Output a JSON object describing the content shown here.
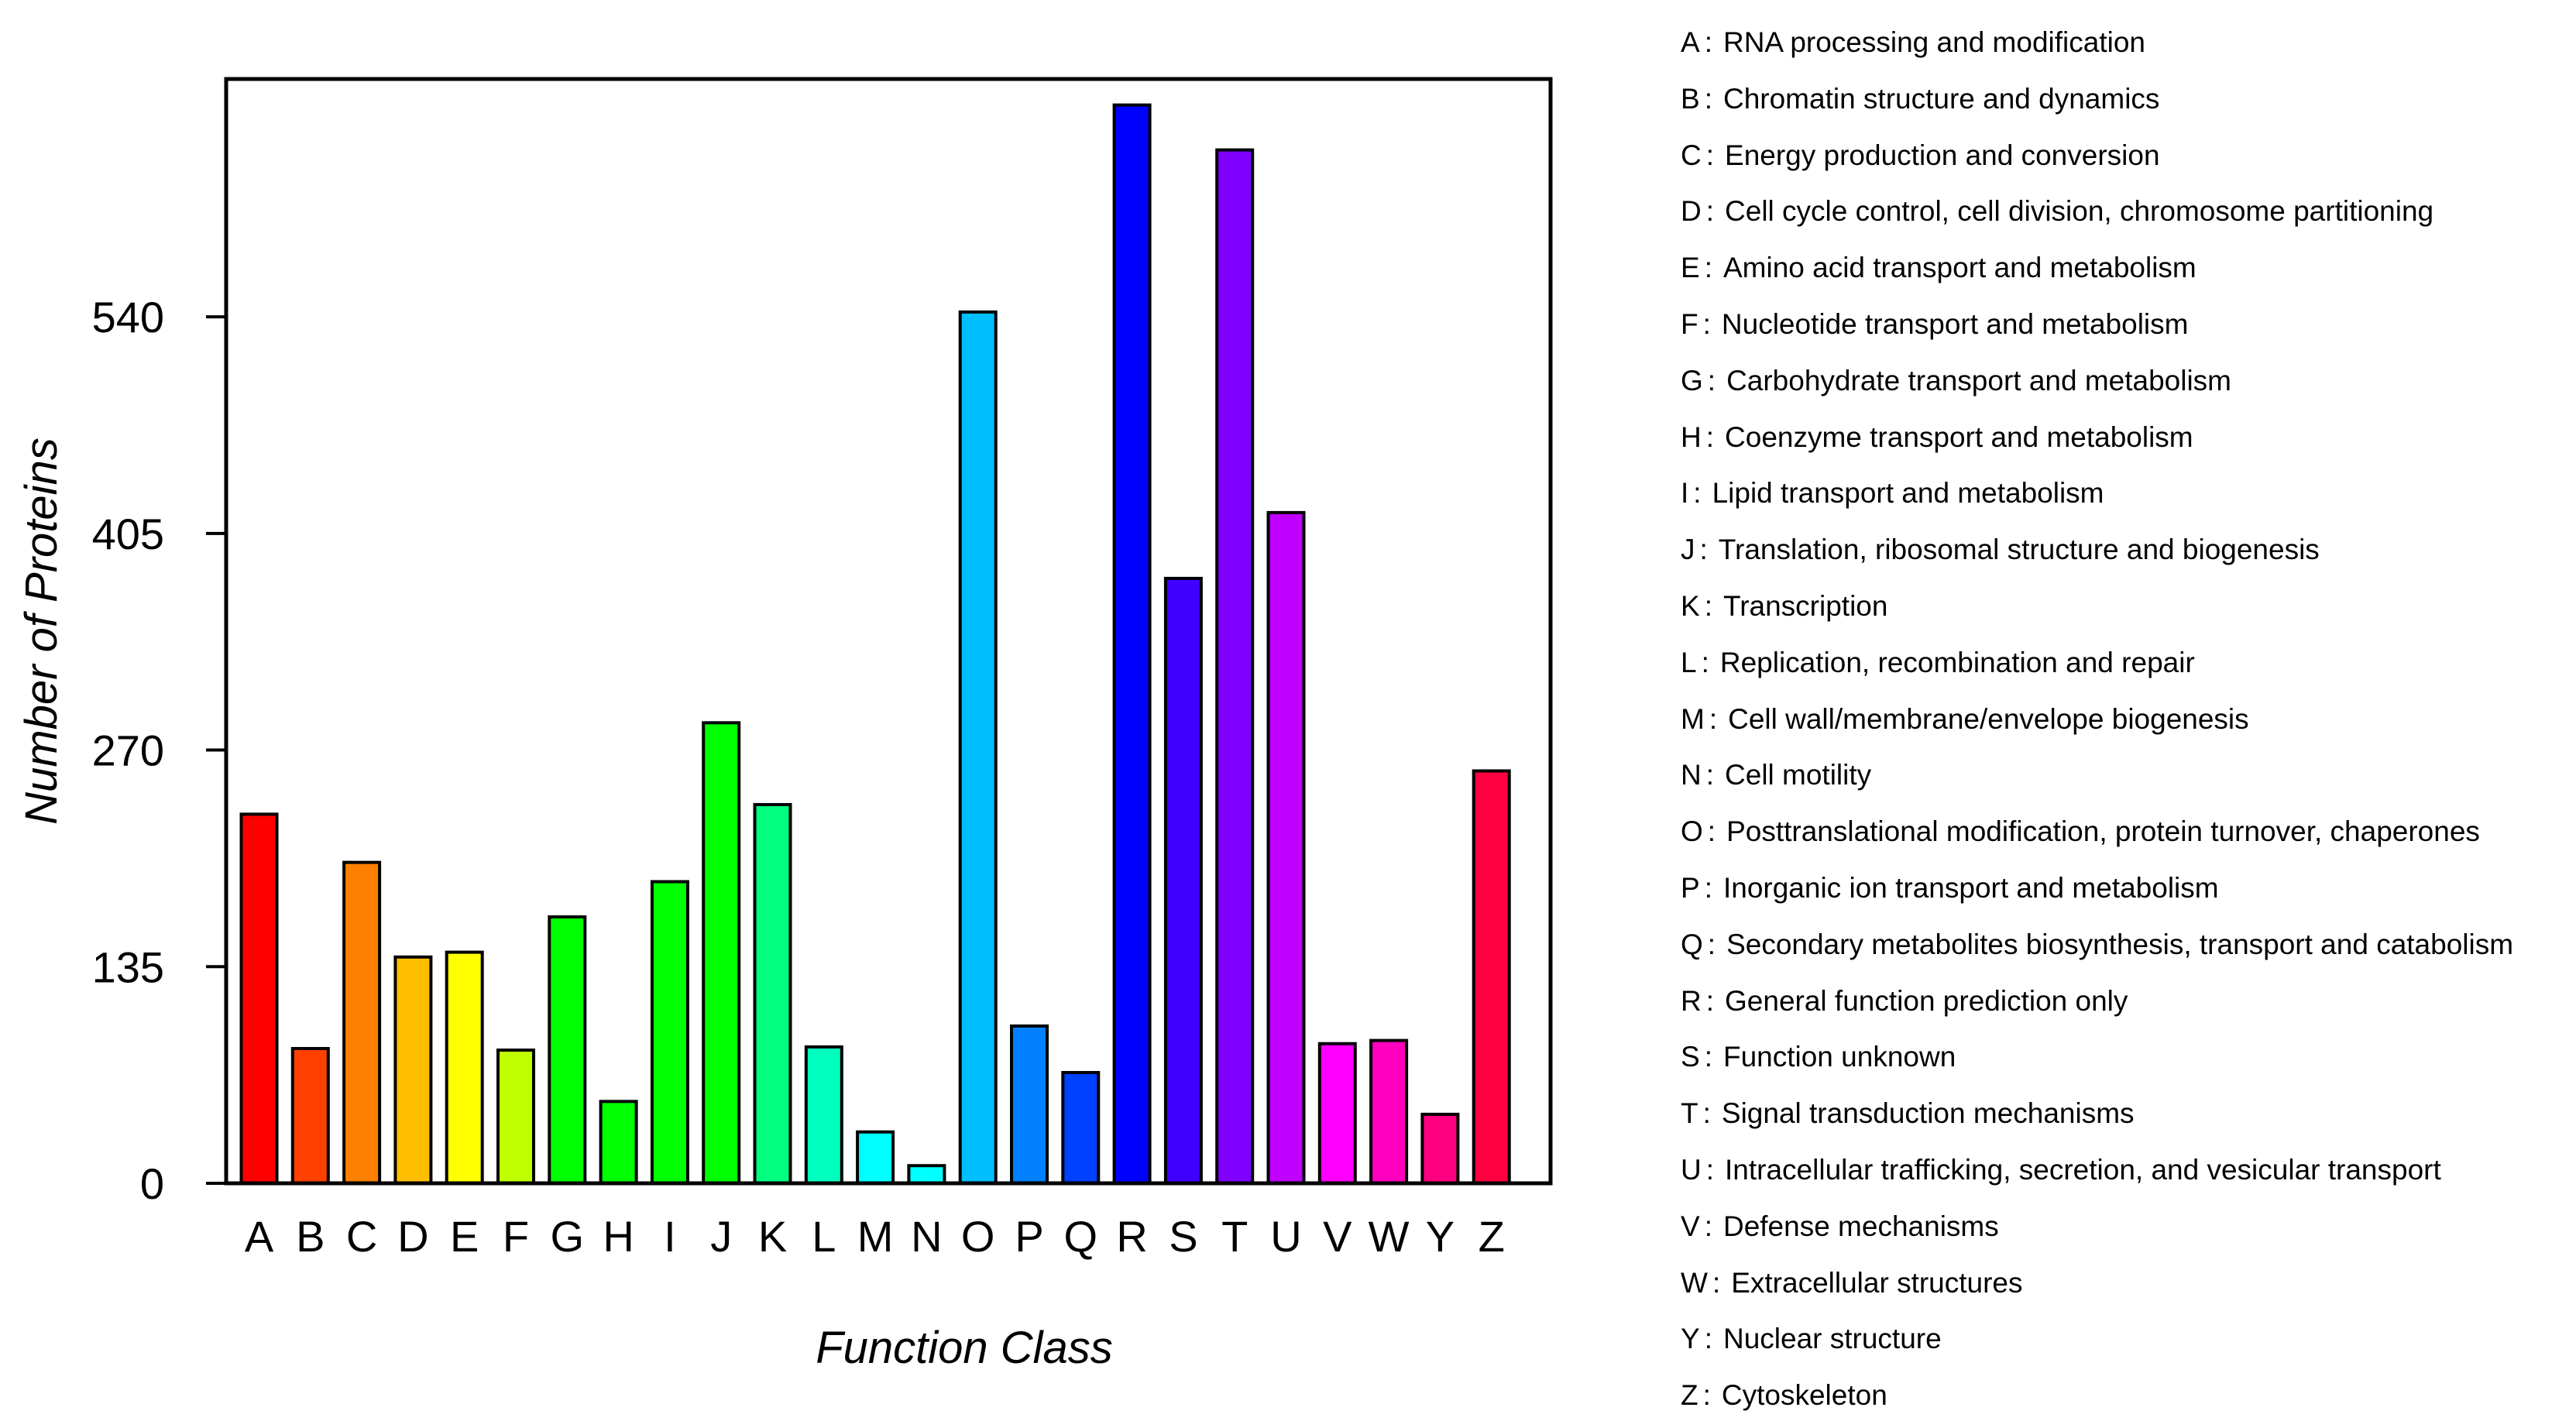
{
  "chart_data": {
    "type": "bar",
    "title": "",
    "xlabel": "Function Class",
    "ylabel": "Number of Proteins",
    "ylim": [
      0,
      675
    ],
    "yticks": [
      0,
      135,
      270,
      405,
      540
    ],
    "categories": [
      "A",
      "B",
      "C",
      "D",
      "E",
      "F",
      "G",
      "H",
      "I",
      "J",
      "K",
      "L",
      "M",
      "N",
      "O",
      "P",
      "Q",
      "R",
      "S",
      "T",
      "U",
      "V",
      "W",
      "Y",
      "Z"
    ],
    "values": [
      230,
      84,
      200,
      141,
      144,
      83,
      166,
      51,
      188,
      287,
      236,
      85,
      32,
      11,
      543,
      98,
      69,
      672,
      377,
      644,
      418,
      87,
      89,
      43,
      257
    ],
    "colors": [
      "#ff0000",
      "#ff4000",
      "#ff8000",
      "#ffbf00",
      "#ffff00",
      "#bfff00",
      "#00ff00",
      "#00ff00",
      "#00ff00",
      "#00ff00",
      "#00ff80",
      "#00ffbf",
      "#00ffff",
      "#00ffff",
      "#00bfff",
      "#0080ff",
      "#0040ff",
      "#0000ff",
      "#4000ff",
      "#8000ff",
      "#bf00ff",
      "#ff00ff",
      "#ff00bf",
      "#ff0080",
      "#ff0040"
    ],
    "legend": [
      {
        "key": "A",
        "label": "RNA processing and modification"
      },
      {
        "key": "B",
        "label": "Chromatin structure and dynamics"
      },
      {
        "key": "C",
        "label": "Energy production and conversion"
      },
      {
        "key": "D",
        "label": "Cell cycle control, cell division, chromosome partitioning"
      },
      {
        "key": "E",
        "label": "Amino acid transport and metabolism"
      },
      {
        "key": "F",
        "label": "Nucleotide transport and metabolism"
      },
      {
        "key": "G",
        "label": "Carbohydrate transport and metabolism"
      },
      {
        "key": "H",
        "label": "Coenzyme transport and metabolism"
      },
      {
        "key": "I",
        "label": "Lipid transport and metabolism"
      },
      {
        "key": "J",
        "label": "Translation, ribosomal structure and biogenesis"
      },
      {
        "key": "K",
        "label": "Transcription"
      },
      {
        "key": "L",
        "label": "Replication, recombination and repair"
      },
      {
        "key": "M",
        "label": "Cell wall/membrane/envelope biogenesis"
      },
      {
        "key": "N",
        "label": "Cell motility"
      },
      {
        "key": "O",
        "label": "Posttranslational modification, protein turnover, chaperones"
      },
      {
        "key": "P",
        "label": "Inorganic ion transport and metabolism"
      },
      {
        "key": "Q",
        "label": "Secondary metabolites biosynthesis, transport and catabolism"
      },
      {
        "key": "R",
        "label": "General function prediction only"
      },
      {
        "key": "S",
        "label": "Function unknown"
      },
      {
        "key": "T",
        "label": "Signal transduction mechanisms"
      },
      {
        "key": "U",
        "label": "Intracellular trafficking, secretion, and vesicular transport"
      },
      {
        "key": "V",
        "label": "Defense mechanisms"
      },
      {
        "key": "W",
        "label": "Extracellular structures"
      },
      {
        "key": "Y",
        "label": "Nuclear structure"
      },
      {
        "key": "Z",
        "label": "Cytoskeleton"
      }
    ],
    "legend_separator": ":",
    "legend_position": "right",
    "grid": false
  }
}
